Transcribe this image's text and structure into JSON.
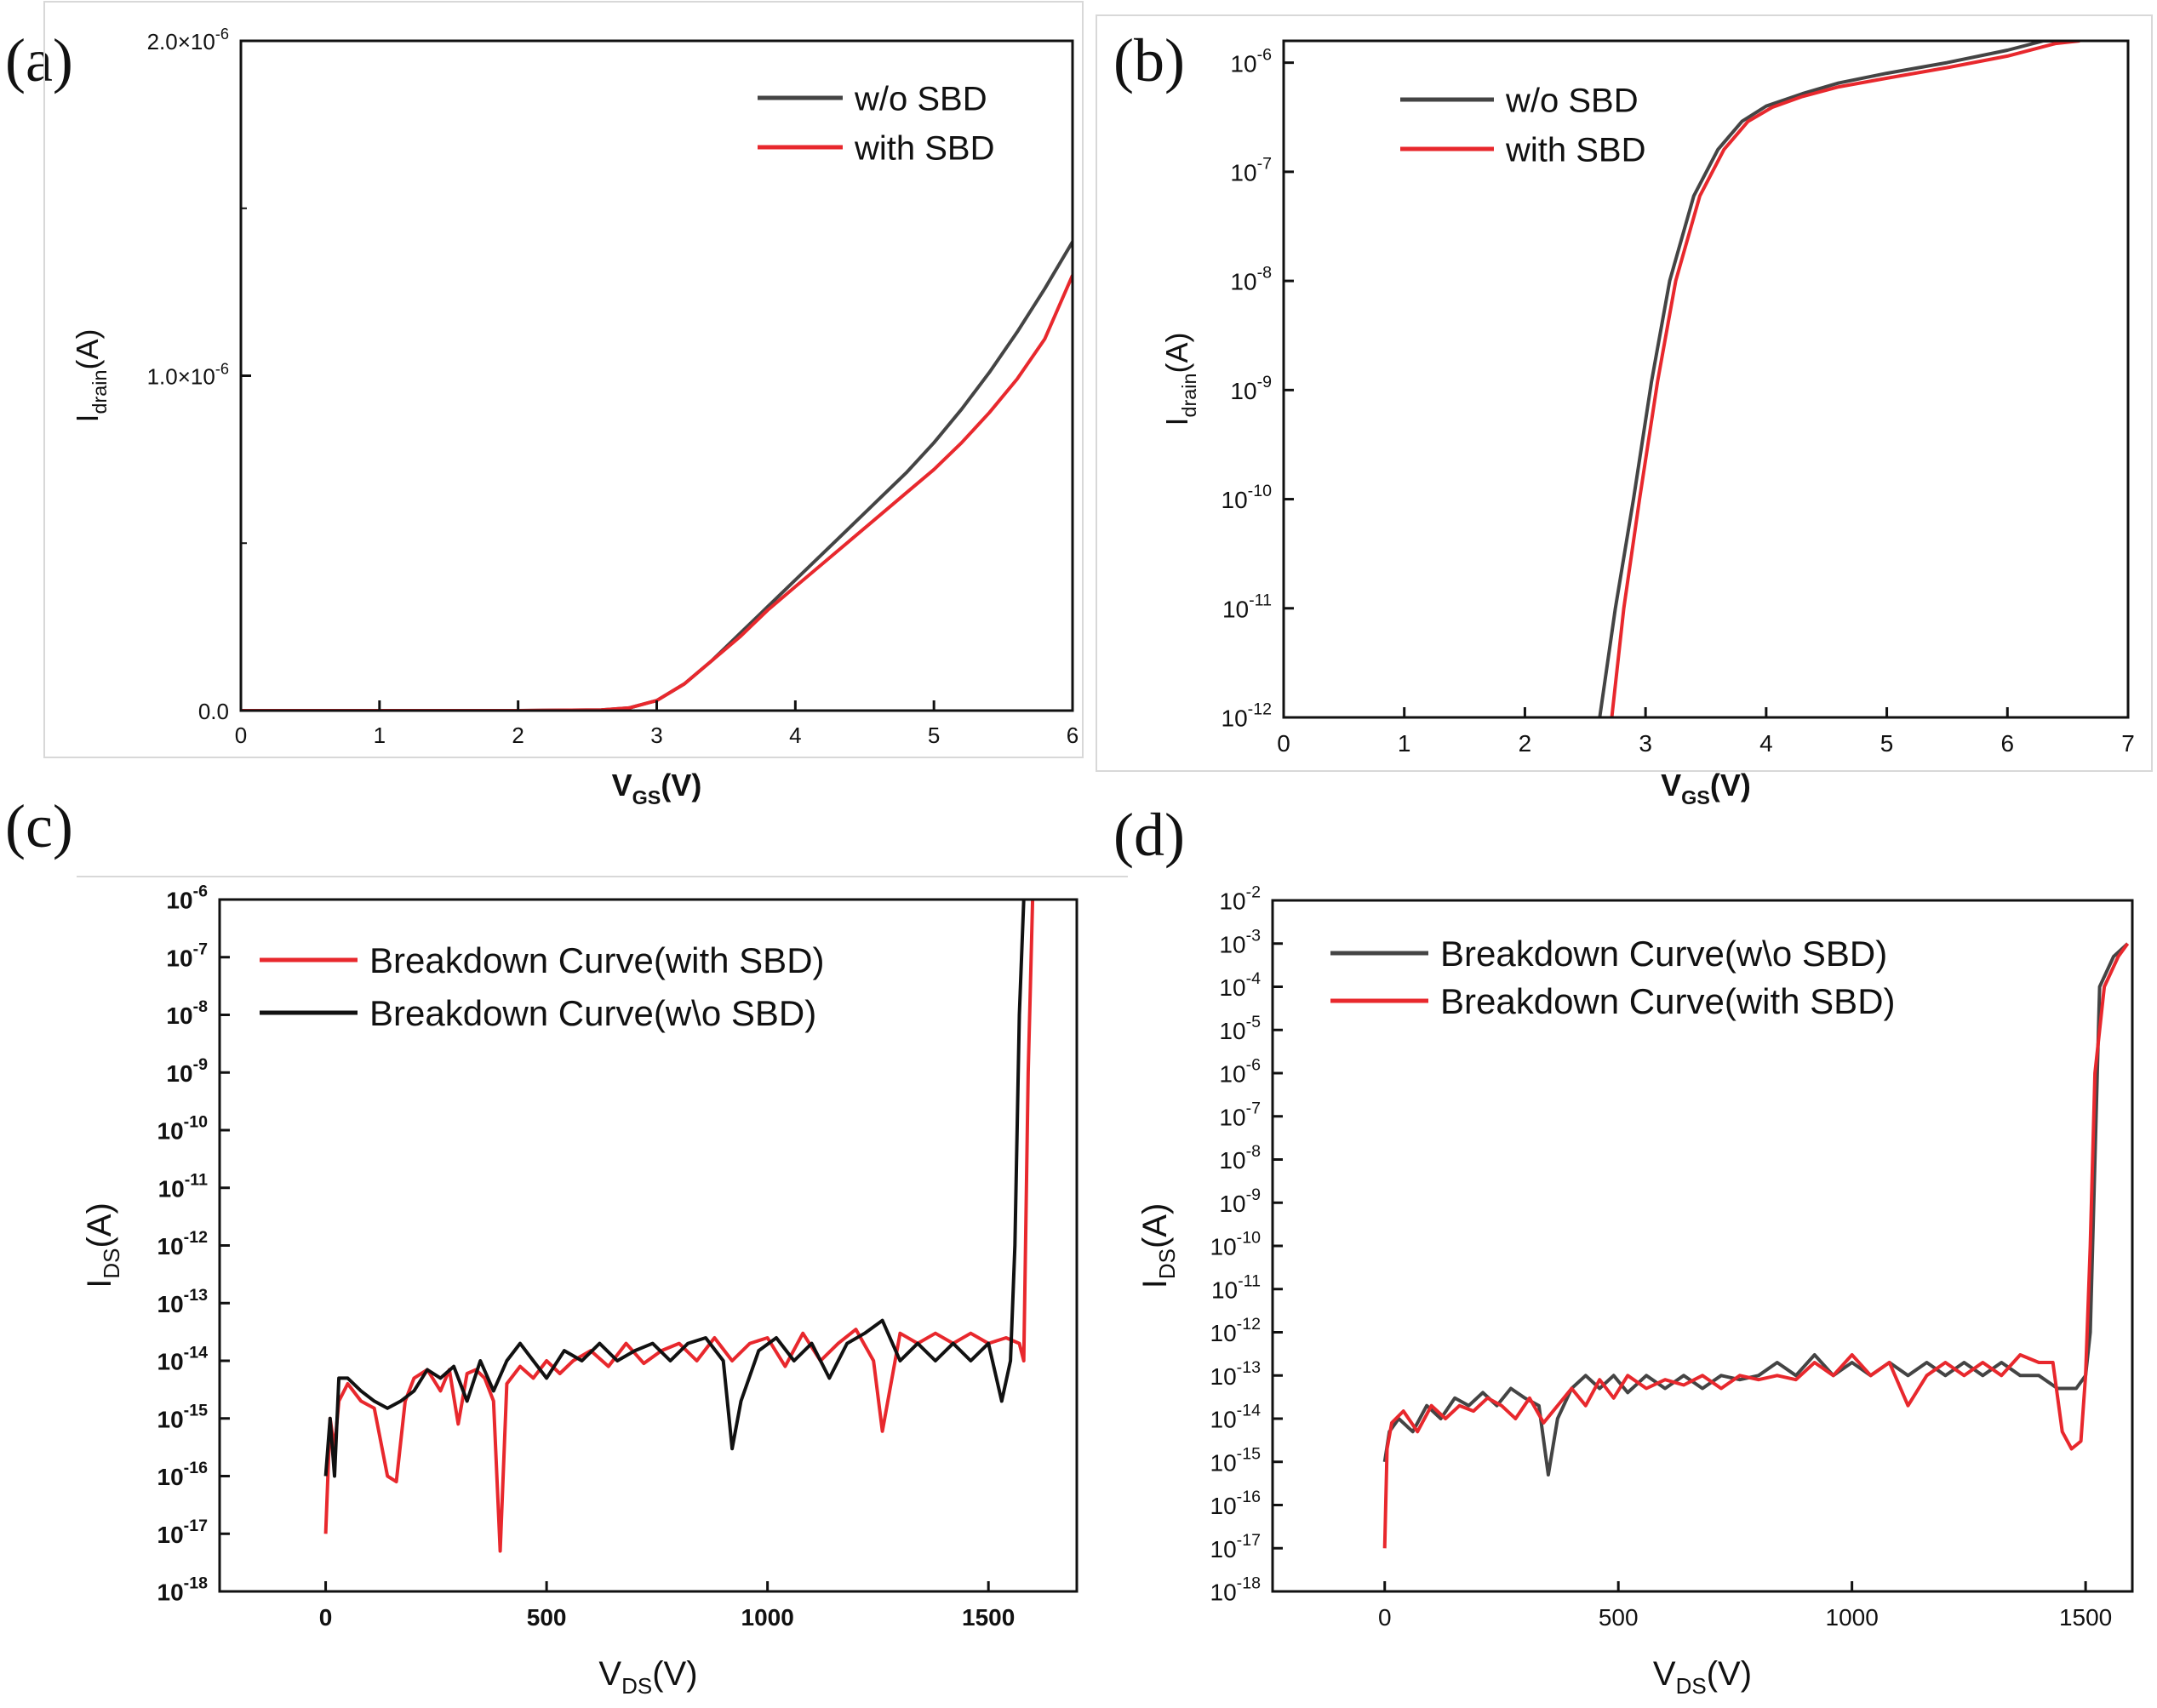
{
  "figure": {
    "colors": {
      "black_series": "#444444",
      "red_series": "#e8282d",
      "c_black": "#111111",
      "axis": "#111111"
    }
  },
  "chart_data": [
    {
      "panel": "(a)",
      "type": "line",
      "xlabel": "V",
      "xlabel_sub": "GS",
      "xlabel_suffix": "(V)",
      "ylabel": "I",
      "ylabel_sub": "drain",
      "ylabel_suffix": "(A)",
      "xlim": [
        0,
        6
      ],
      "ylim": [
        0,
        2e-06
      ],
      "yscale": "linear",
      "xticks": [
        "0",
        "1",
        "2",
        "3",
        "4",
        "5",
        "6"
      ],
      "yticks": [
        {
          "value": 0,
          "label": "0.0"
        },
        {
          "value": 1e-06,
          "label": "1.0×10",
          "exp": "-6"
        },
        {
          "value": 2e-06,
          "label": "2.0×10",
          "exp": "-6"
        }
      ],
      "legend": "top-right",
      "series": [
        {
          "name": "w/o SBD",
          "color": "black",
          "x": [
            0,
            1,
            2,
            2.6,
            2.8,
            3.0,
            3.2,
            3.4,
            3.6,
            3.8,
            4.0,
            4.2,
            4.4,
            4.6,
            4.8,
            5.0,
            5.2,
            5.4,
            5.6,
            5.8,
            6.0
          ],
          "y": [
            0,
            0,
            0,
            2e-09,
            8e-09,
            3e-08,
            8e-08,
            1.5e-07,
            2.3e-07,
            3.1e-07,
            3.9e-07,
            4.7e-07,
            5.5e-07,
            6.3e-07,
            7.1e-07,
            8e-07,
            9e-07,
            1.01e-06,
            1.13e-06,
            1.26e-06,
            1.4e-06
          ]
        },
        {
          "name": "with SBD",
          "color": "red",
          "x": [
            0,
            1,
            2,
            2.6,
            2.8,
            3.0,
            3.2,
            3.4,
            3.6,
            3.8,
            4.0,
            4.2,
            4.4,
            4.6,
            4.8,
            5.0,
            5.2,
            5.4,
            5.6,
            5.8,
            6.0
          ],
          "y": [
            0,
            0,
            0,
            2e-09,
            8e-09,
            3e-08,
            8e-08,
            1.5e-07,
            2.2e-07,
            3e-07,
            3.7e-07,
            4.4e-07,
            5.1e-07,
            5.8e-07,
            6.5e-07,
            7.2e-07,
            8e-07,
            8.9e-07,
            9.9e-07,
            1.11e-06,
            1.3e-06
          ]
        }
      ]
    },
    {
      "panel": "(b)",
      "type": "line",
      "xlabel": "V",
      "xlabel_sub": "GS",
      "xlabel_suffix": "(V)",
      "ylabel": "I",
      "ylabel_sub": "drain",
      "ylabel_suffix": "(A)",
      "xlim": [
        0,
        7
      ],
      "ylim_exp": [
        -12,
        -5.8
      ],
      "yscale": "log",
      "xticks": [
        "0",
        "1",
        "2",
        "3",
        "4",
        "5",
        "6",
        "7"
      ],
      "yticks_exp": [
        -12,
        -11,
        -10,
        -9,
        -8,
        -7,
        -6
      ],
      "legend": "top-left",
      "series": [
        {
          "name": "w/o SBD",
          "color": "black",
          "x": [
            2.62,
            2.75,
            2.9,
            3.05,
            3.2,
            3.4,
            3.6,
            3.8,
            4.0,
            4.3,
            4.6,
            5.0,
            5.5,
            6.0,
            6.3,
            6.5
          ],
          "y": [
            1e-12,
            1e-11,
            1e-10,
            1.2e-09,
            1e-08,
            6e-08,
            1.6e-07,
            2.9e-07,
            4e-07,
            5.2e-07,
            6.5e-07,
            8e-07,
            1e-06,
            1.3e-06,
            1.6e-06,
            1.8e-06
          ]
        },
        {
          "name": "with SBD",
          "color": "red",
          "x": [
            2.72,
            2.82,
            2.95,
            3.1,
            3.25,
            3.45,
            3.65,
            3.85,
            4.05,
            4.3,
            4.6,
            5.0,
            5.5,
            6.0,
            6.4,
            6.6
          ],
          "y": [
            1e-12,
            1e-11,
            1e-10,
            1.2e-09,
            1e-08,
            6e-08,
            1.6e-07,
            2.9e-07,
            3.9e-07,
            4.9e-07,
            6e-07,
            7.2e-07,
            9e-07,
            1.15e-06,
            1.5e-06,
            1.8e-06
          ]
        }
      ]
    },
    {
      "panel": "(c)",
      "type": "line",
      "xlabel": "V",
      "xlabel_sub": "DS",
      "xlabel_suffix": "(V)",
      "ylabel": "I",
      "ylabel_sub": "DS",
      "ylabel_suffix": "(A)",
      "xlim": [
        -240,
        1700
      ],
      "ylim_exp": [
        -18,
        -6
      ],
      "yscale": "log",
      "xticks": [
        {
          "value": 0,
          "label": "0"
        },
        {
          "value": 500,
          "label": "500"
        },
        {
          "value": 1000,
          "label": "1000"
        },
        {
          "value": 1500,
          "label": "1500"
        }
      ],
      "yticks_exp": [
        -18,
        -17,
        -16,
        -15,
        -14,
        -13,
        -12,
        -11,
        -10,
        -9,
        -8,
        -7,
        -6
      ],
      "legend": "top-left",
      "series": [
        {
          "name": "Breakdown Curve(with SBD)",
          "color": "red",
          "x": [
            0,
            10,
            20,
            30,
            50,
            80,
            110,
            140,
            160,
            180,
            200,
            230,
            260,
            280,
            300,
            320,
            340,
            360,
            380,
            395,
            410,
            440,
            470,
            500,
            530,
            560,
            600,
            640,
            680,
            720,
            760,
            800,
            840,
            880,
            920,
            960,
            1000,
            1040,
            1080,
            1120,
            1160,
            1200,
            1240,
            1260,
            1300,
            1340,
            1380,
            1420,
            1460,
            1500,
            1540,
            1570,
            1580,
            1590,
            1600
          ],
          "y": [
            1e-17,
            1e-15,
            3e-16,
            2e-15,
            4e-15,
            2e-15,
            1.5e-15,
            1e-16,
            8e-17,
            2e-15,
            5e-15,
            7e-15,
            3e-15,
            7e-15,
            8e-16,
            6e-15,
            7e-15,
            5e-15,
            2e-15,
            5e-18,
            4e-15,
            8e-15,
            5e-15,
            1e-14,
            6e-15,
            1e-14,
            1.5e-14,
            8e-15,
            2e-14,
            9e-15,
            1.5e-14,
            2e-14,
            1e-14,
            2.5e-14,
            1e-14,
            2e-14,
            2.5e-14,
            8e-15,
            3e-14,
            1e-14,
            2e-14,
            3.5e-14,
            1e-14,
            6e-16,
            3e-14,
            2e-14,
            3e-14,
            2e-14,
            3e-14,
            2e-14,
            2.5e-14,
            2e-14,
            1e-14,
            1e-09,
            1e-06
          ]
        },
        {
          "name": "Breakdown Curve(w\\o SBD)",
          "color": "c_black",
          "x": [
            0,
            10,
            20,
            30,
            50,
            80,
            110,
            140,
            170,
            200,
            230,
            260,
            290,
            320,
            350,
            380,
            410,
            440,
            470,
            500,
            540,
            580,
            620,
            660,
            700,
            740,
            780,
            820,
            860,
            900,
            920,
            940,
            980,
            1020,
            1060,
            1100,
            1140,
            1180,
            1220,
            1260,
            1300,
            1340,
            1380,
            1420,
            1460,
            1500,
            1530,
            1550,
            1560,
            1570,
            1580
          ],
          "y": [
            1e-16,
            1e-15,
            1e-16,
            5e-15,
            5e-15,
            3e-15,
            2e-15,
            1.5e-15,
            2e-15,
            3e-15,
            7e-15,
            5e-15,
            8e-15,
            2e-15,
            1e-14,
            3e-15,
            1e-14,
            2e-14,
            1e-14,
            5e-15,
            1.5e-14,
            1e-14,
            2e-14,
            1e-14,
            1.5e-14,
            2e-14,
            1e-14,
            2e-14,
            2.5e-14,
            1e-14,
            3e-16,
            2e-15,
            1.5e-14,
            2.5e-14,
            1e-14,
            2e-14,
            5e-15,
            2e-14,
            3e-14,
            5e-14,
            1e-14,
            2e-14,
            1e-14,
            2e-14,
            1e-14,
            2e-14,
            2e-15,
            1e-14,
            1e-12,
            1e-08,
            1e-06
          ]
        }
      ]
    },
    {
      "panel": "(d)",
      "type": "line",
      "xlabel": "V",
      "xlabel_sub": "DS",
      "xlabel_suffix": "(V)",
      "ylabel": "I",
      "ylabel_sub": "DS",
      "ylabel_suffix": "(A)",
      "xlim": [
        -240,
        1600
      ],
      "ylim_exp": [
        -18,
        -2
      ],
      "yscale": "log",
      "xticks": [
        {
          "value": 0,
          "label": "0"
        },
        {
          "value": 500,
          "label": "500"
        },
        {
          "value": 1000,
          "label": "1000"
        },
        {
          "value": 1500,
          "label": "1500"
        }
      ],
      "yticks_exp": [
        -18,
        -17,
        -16,
        -15,
        -14,
        -13,
        -12,
        -11,
        -10,
        -9,
        -8,
        -7,
        -6,
        -5,
        -4,
        -3,
        -2
      ],
      "legend": "top-left",
      "series": [
        {
          "name": "Breakdown Curve(w\\o SBD)",
          "color": "black",
          "x": [
            0,
            10,
            30,
            60,
            90,
            120,
            150,
            180,
            210,
            240,
            270,
            300,
            330,
            350,
            370,
            400,
            430,
            460,
            490,
            520,
            560,
            600,
            640,
            680,
            720,
            760,
            800,
            840,
            880,
            920,
            960,
            1000,
            1040,
            1080,
            1120,
            1160,
            1200,
            1240,
            1280,
            1320,
            1360,
            1400,
            1440,
            1480,
            1500,
            1510,
            1520,
            1530,
            1560,
            1590
          ],
          "y": [
            1e-15,
            5e-15,
            1e-14,
            5e-15,
            2e-14,
            1e-14,
            3e-14,
            2e-14,
            4e-14,
            2e-14,
            5e-14,
            3e-14,
            2e-14,
            5e-16,
            1e-14,
            5e-14,
            1e-13,
            5e-14,
            1e-13,
            4e-14,
            1e-13,
            5e-14,
            1e-13,
            5e-14,
            1e-13,
            8e-14,
            1e-13,
            2e-13,
            1e-13,
            3e-13,
            1e-13,
            2e-13,
            1e-13,
            2e-13,
            1e-13,
            2e-13,
            1e-13,
            2e-13,
            1e-13,
            2e-13,
            1e-13,
            1e-13,
            5e-14,
            5e-14,
            1e-13,
            1e-12,
            1e-08,
            0.0001,
            0.0005,
            0.001
          ]
        },
        {
          "name": "Breakdown Curve(with SBD)",
          "color": "red",
          "x": [
            0,
            5,
            15,
            40,
            70,
            100,
            130,
            160,
            190,
            220,
            250,
            280,
            310,
            340,
            370,
            400,
            430,
            460,
            490,
            520,
            560,
            600,
            640,
            680,
            720,
            760,
            800,
            840,
            880,
            920,
            960,
            1000,
            1040,
            1080,
            1120,
            1160,
            1200,
            1240,
            1280,
            1320,
            1360,
            1400,
            1430,
            1450,
            1470,
            1490,
            1500,
            1510,
            1520,
            1540,
            1570,
            1590
          ],
          "y": [
            1e-17,
            2e-15,
            8e-15,
            1.5e-14,
            5e-15,
            2e-14,
            1e-14,
            2e-14,
            1.5e-14,
            3e-14,
            2e-14,
            1e-14,
            3e-14,
            8e-15,
            2e-14,
            5e-14,
            2e-14,
            8e-14,
            3e-14,
            1e-13,
            5e-14,
            8e-14,
            6e-14,
            1e-13,
            5e-14,
            1e-13,
            8e-14,
            1e-13,
            8e-14,
            2e-13,
            1e-13,
            3e-13,
            1e-13,
            2e-13,
            2e-14,
            1e-13,
            2e-13,
            1e-13,
            2e-13,
            1e-13,
            3e-13,
            2e-13,
            2e-13,
            5e-15,
            2e-15,
            3e-15,
            1e-13,
            1e-10,
            1e-06,
            0.0001,
            0.0005,
            0.001
          ]
        }
      ]
    }
  ],
  "legend_labels": {
    "a": [
      "w/o SBD",
      "with SBD"
    ],
    "b": [
      "w/o SBD",
      "with SBD"
    ],
    "c": [
      "Breakdown Curve(with SBD)",
      "Breakdown Curve(w\\o SBD)"
    ],
    "d": [
      "Breakdown Curve(w\\o SBD)",
      "Breakdown Curve(with SBD)"
    ]
  }
}
